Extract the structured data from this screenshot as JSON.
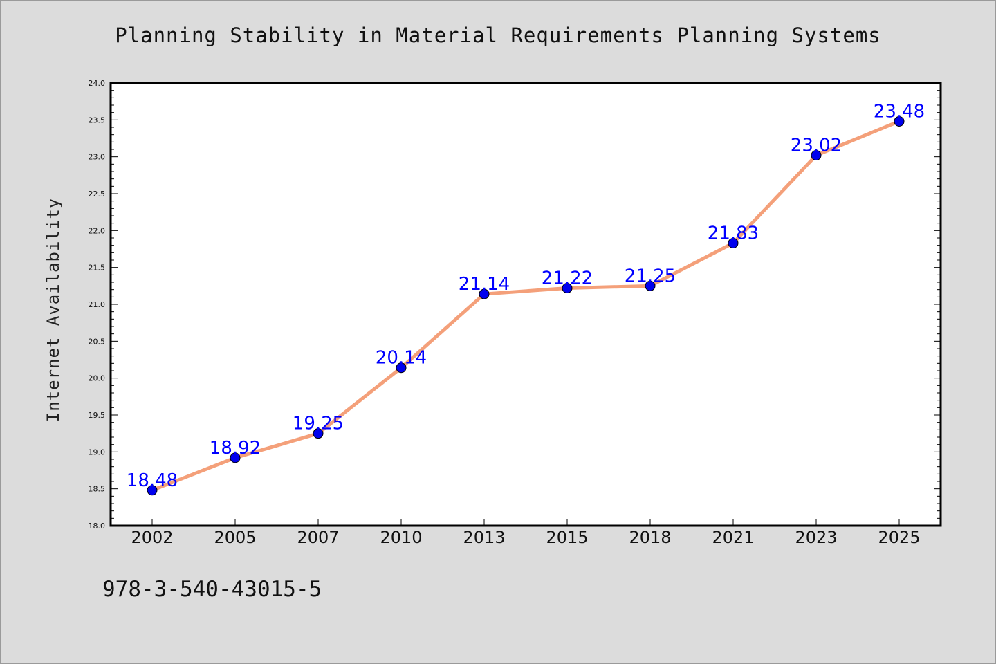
{
  "chart_data": {
    "type": "line",
    "title": "Planning Stability in Material Requirements Planning Systems",
    "xlabel": "",
    "ylabel": "Internet Availability",
    "categories": [
      "2002",
      "2005",
      "2007",
      "2010",
      "2013",
      "2015",
      "2018",
      "2021",
      "2023",
      "2025"
    ],
    "series": [
      {
        "values": [
          18.48,
          18.92,
          19.25,
          20.14,
          21.14,
          21.22,
          21.25,
          21.83,
          23.02,
          23.48
        ],
        "labels": [
          "18.48",
          "18.92",
          "19.25",
          "20.14",
          "21.14",
          "21.22",
          "21.25",
          "21.83",
          "23.02",
          "23.48"
        ]
      }
    ],
    "ylim": [
      18.0,
      24.0
    ],
    "yticks": [
      "18.0",
      "18.5",
      "19.0",
      "19.5",
      "20.0",
      "20.5",
      "21.0",
      "21.5",
      "22.0",
      "22.5",
      "23.0",
      "23.5",
      "24.0"
    ],
    "grid": false,
    "line_color": "#f4a07a",
    "marker_color": "#0000ee",
    "label_color": "#0000ff"
  },
  "annotation": "978-3-540-43015-5"
}
